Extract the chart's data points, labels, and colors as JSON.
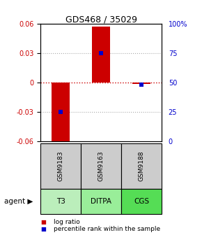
{
  "title": "GDS468 / 35029",
  "samples": [
    "GSM9183",
    "GSM9163",
    "GSM9188"
  ],
  "agents": [
    "T3",
    "DITPA",
    "CGS"
  ],
  "log_ratios": [
    -0.065,
    0.057,
    -0.002
  ],
  "percentile_ranks": [
    25,
    75,
    48
  ],
  "ylim": [
    -0.06,
    0.06
  ],
  "yticks_left": [
    -0.06,
    -0.03,
    0,
    0.03,
    0.06
  ],
  "yticks_right": [
    0,
    25,
    50,
    75,
    100
  ],
  "bar_color": "#cc0000",
  "dot_color": "#0000cc",
  "zero_line_color": "#cc0000",
  "sample_box_color": "#cccccc",
  "agent_box_color": "#99ee99",
  "agent_box_color2": "#66dd66",
  "legend_bar_label": "log ratio",
  "legend_dot_label": "percentile rank within the sample",
  "agent_label": "agent",
  "title_fontsize": 9,
  "tick_fontsize": 7,
  "legend_fontsize": 6.5,
  "sample_fontsize": 6.5,
  "agent_fontsize": 7.5
}
